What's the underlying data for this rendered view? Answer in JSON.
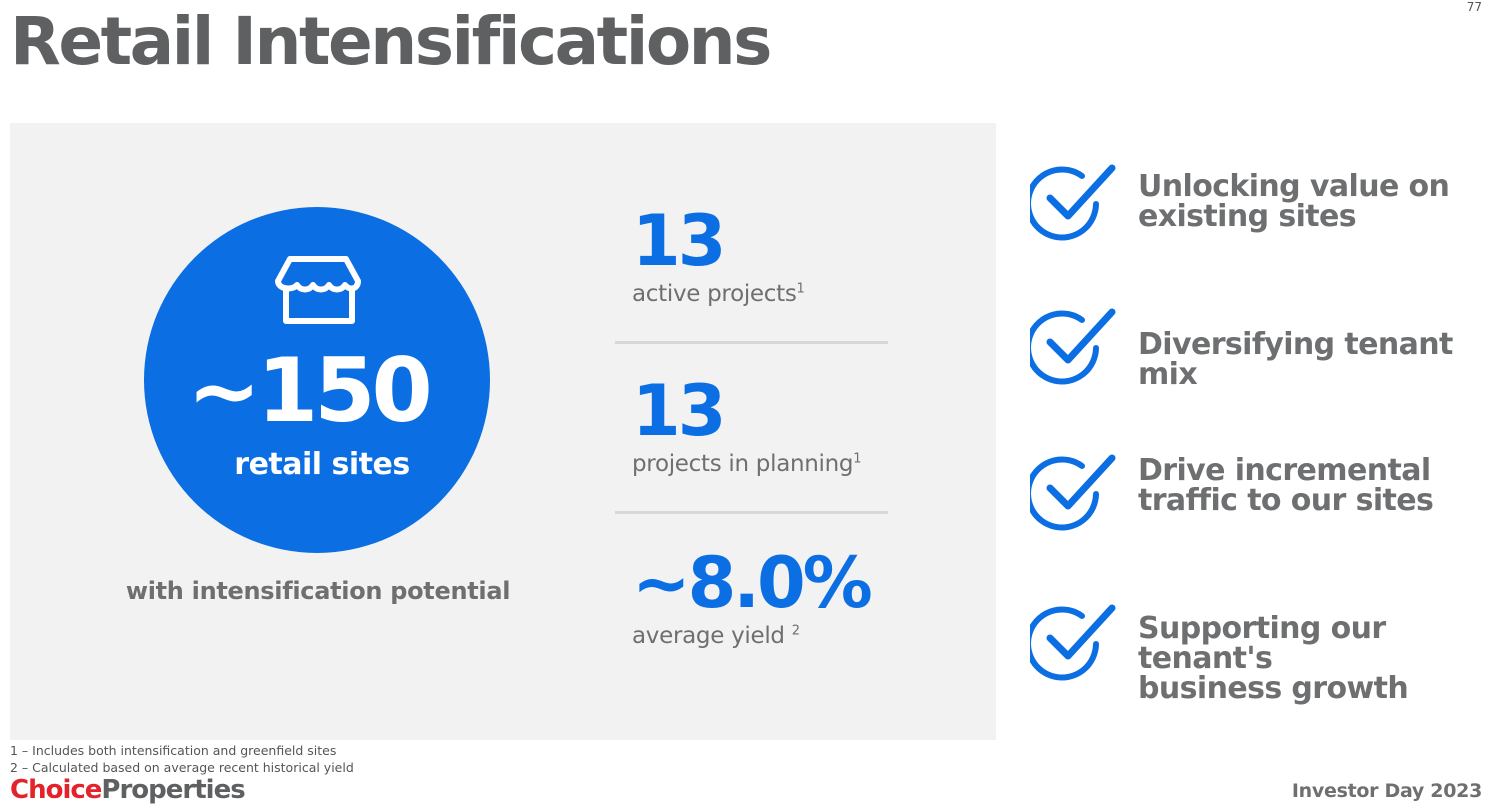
{
  "page_number": "77",
  "title": "Retail Intensifications",
  "circle": {
    "value": "~150",
    "label": "retail sites",
    "caption": "with intensification potential",
    "icon": "storefront-icon"
  },
  "stats": [
    {
      "value": "13",
      "label": "active projects",
      "footnote": "1"
    },
    {
      "value": "13",
      "label": "projects in planning",
      "footnote": "1"
    },
    {
      "value": "~8.0%",
      "label": "average yield ",
      "footnote": "2"
    }
  ],
  "benefits": [
    {
      "line1": "Unlocking value on",
      "line2": "existing sites"
    },
    {
      "line1": "Diversifying tenant mix",
      "line2": ""
    },
    {
      "line1": "Drive incremental",
      "line2": "traffic to our sites"
    },
    {
      "line1": "Supporting our tenant's",
      "line2": "business growth"
    }
  ],
  "footnotes": [
    "1 – Includes both intensification and greenfield sites",
    "2 – Calculated based on average recent historical yield"
  ],
  "logo": {
    "part1": "Choice",
    "part2": "Properties"
  },
  "event": "Investor Day 2023",
  "colors": {
    "accent": "#0b6ee3",
    "text_gray": "#6e6f71",
    "title_gray": "#5f6062",
    "brand_red": "#e3222b",
    "panel": "#f2f2f2"
  }
}
